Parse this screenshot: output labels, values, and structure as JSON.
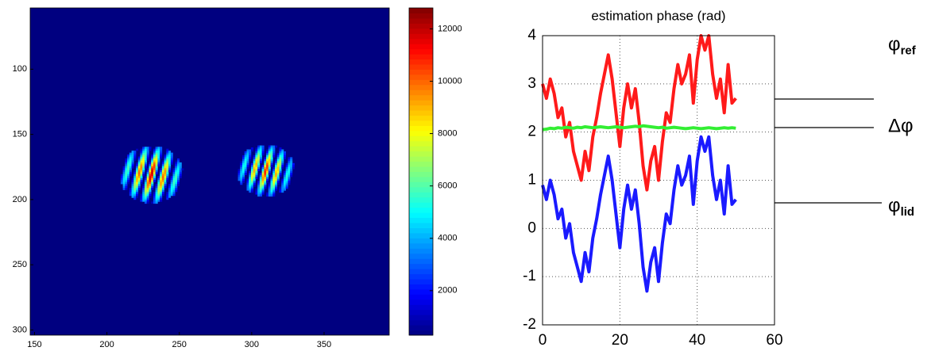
{
  "chart_data": [
    {
      "type": "image",
      "colormap": "jet",
      "xlim": [
        147,
        395
      ],
      "ylim": [
        304,
        53
      ],
      "xticks": [
        150,
        200,
        250,
        300,
        350
      ],
      "yticks": [
        100,
        150,
        200,
        250,
        300
      ],
      "clim": [
        300,
        12800
      ],
      "cticks": [
        2000,
        4000,
        6000,
        8000,
        10000,
        12000
      ],
      "spots": [
        {
          "x": 230,
          "y": 180,
          "r": 22,
          "peak": 12000,
          "fringes": 5
        },
        {
          "x": 309,
          "y": 177,
          "r": 20,
          "peak": 11000,
          "fringes": 5
        }
      ]
    },
    {
      "type": "line",
      "title": "estimation phase (rad)",
      "xlim": [
        0,
        60
      ],
      "ylim": [
        -2,
        4
      ],
      "xticks": [
        0,
        20,
        40,
        60
      ],
      "yticks": [
        -2,
        -1,
        0,
        1,
        2,
        3,
        4
      ],
      "grid": true,
      "x": [
        0,
        1,
        2,
        3,
        4,
        5,
        6,
        7,
        8,
        9,
        10,
        11,
        12,
        13,
        14,
        15,
        16,
        17,
        18,
        19,
        20,
        21,
        22,
        23,
        24,
        25,
        26,
        27,
        28,
        29,
        30,
        31,
        32,
        33,
        34,
        35,
        36,
        37,
        38,
        39,
        40,
        41,
        42,
        43,
        44,
        45,
        46,
        47,
        48,
        49,
        50
      ],
      "series": [
        {
          "name": "φ",
          "subscript": "ref",
          "color": "#ff1a1a",
          "values": [
            3.0,
            2.7,
            3.1,
            2.8,
            2.3,
            2.5,
            1.9,
            2.2,
            1.6,
            1.3,
            1.0,
            1.6,
            1.2,
            1.9,
            2.3,
            2.8,
            3.2,
            3.6,
            3.1,
            2.4,
            1.7,
            2.5,
            3.0,
            2.5,
            2.9,
            2.2,
            1.3,
            0.8,
            1.4,
            1.7,
            1.0,
            1.8,
            2.4,
            2.2,
            2.9,
            3.4,
            3.0,
            3.2,
            3.6,
            2.6,
            3.5,
            4.0,
            3.7,
            4.0,
            3.2,
            2.7,
            3.1,
            2.4,
            3.4,
            2.6,
            2.7
          ]
        },
        {
          "name": "Δφ",
          "color": "#33ee33",
          "values": [
            2.05,
            2.06,
            2.08,
            2.07,
            2.09,
            2.08,
            2.1,
            2.09,
            2.08,
            2.1,
            2.09,
            2.11,
            2.1,
            2.09,
            2.1,
            2.11,
            2.1,
            2.09,
            2.1,
            2.11,
            2.1,
            2.09,
            2.1,
            2.11,
            2.12,
            2.11,
            2.13,
            2.12,
            2.11,
            2.1,
            2.09,
            2.1,
            2.08,
            2.09,
            2.1,
            2.09,
            2.08,
            2.07,
            2.08,
            2.09,
            2.08,
            2.07,
            2.08,
            2.09,
            2.08,
            2.07,
            2.08,
            2.09,
            2.08,
            2.09,
            2.08
          ]
        },
        {
          "name": "φ",
          "subscript": "lid",
          "color": "#1a1aff",
          "values": [
            0.9,
            0.6,
            1.0,
            0.7,
            0.2,
            0.4,
            -0.2,
            0.1,
            -0.5,
            -0.8,
            -1.1,
            -0.5,
            -0.9,
            -0.2,
            0.2,
            0.7,
            1.1,
            1.5,
            1.0,
            0.3,
            -0.4,
            0.4,
            0.9,
            0.4,
            0.8,
            0.1,
            -0.8,
            -1.3,
            -0.7,
            -0.4,
            -1.1,
            -0.3,
            0.3,
            0.1,
            0.8,
            1.3,
            0.9,
            1.1,
            1.5,
            0.5,
            1.4,
            1.9,
            1.6,
            1.9,
            1.1,
            0.6,
            1.0,
            0.3,
            1.3,
            0.5,
            0.6
          ]
        }
      ]
    }
  ]
}
